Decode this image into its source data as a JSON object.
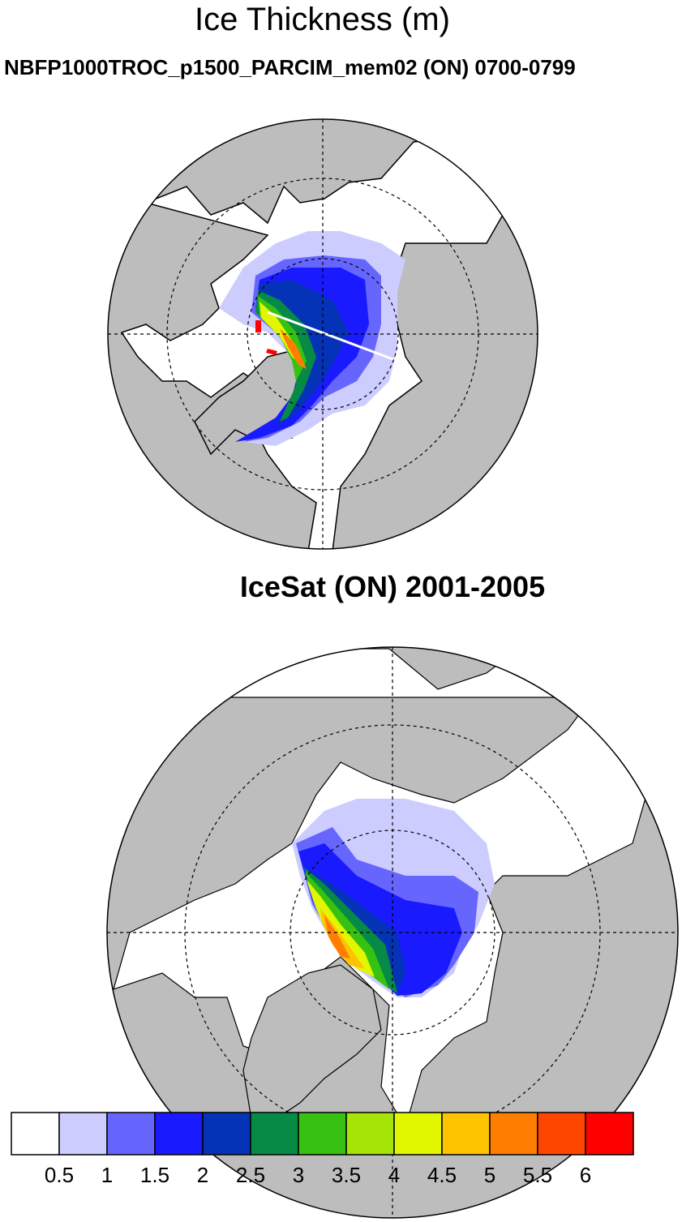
{
  "title": "Ice Thickness (m)",
  "panels": [
    {
      "subtitle": "NBFP1000TROC_p1500_PARCIM_mem02 (ON) 0700-0799",
      "projection": "north polar stereographic"
    },
    {
      "subtitle": "IceSat (ON) 2001-2005",
      "projection": "north polar stereographic"
    }
  ],
  "chart_data": {
    "type": "heatmap",
    "title": "Ice Thickness (m)",
    "colorbar": {
      "levels": [
        "0.5",
        "1",
        "1.5",
        "2",
        "2.5",
        "3",
        "3.5",
        "4",
        "4.5",
        "5",
        "5.5",
        "6"
      ],
      "colors": [
        "#ffffff",
        "#ccccff",
        "#6666ff",
        "#1a1aff",
        "#0533b8",
        "#078a45",
        "#37c212",
        "#a5e406",
        "#e1f700",
        "#ffc400",
        "#ff7d00",
        "#ff4600",
        "#ff0000"
      ]
    },
    "land_color": "#bdbdbd"
  }
}
